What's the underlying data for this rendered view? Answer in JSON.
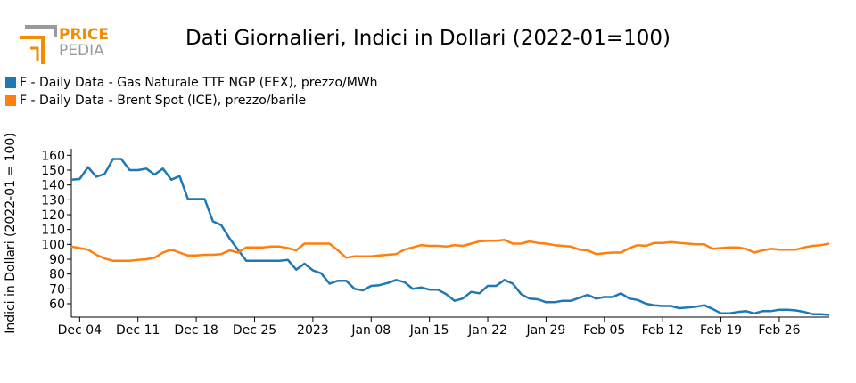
{
  "logo": {
    "word1": "PRICE",
    "word2": "PEDIA",
    "accent": "#f28c00",
    "secondary": "#9a9a9a"
  },
  "chart_data": {
    "type": "line",
    "title": "Dati Giornalieri, Indici in Dollari (2022-01=100)",
    "xlabel": "",
    "ylabel": "Indici in Dollari (2022-01 = 100)",
    "ylim": [
      51,
      162
    ],
    "yticks": [
      60,
      70,
      80,
      90,
      100,
      110,
      120,
      130,
      140,
      150,
      160
    ],
    "xlim": [
      "2022-12-03",
      "2023-03-04"
    ],
    "xticks": [
      {
        "date": "2022-12-04",
        "label": "Dec 04"
      },
      {
        "date": "2022-12-11",
        "label": "Dec 11"
      },
      {
        "date": "2022-12-18",
        "label": "Dec 18"
      },
      {
        "date": "2022-12-25",
        "label": "Dec 25"
      },
      {
        "date": "2023-01-01",
        "label": "2023"
      },
      {
        "date": "2023-01-08",
        "label": "Jan 08"
      },
      {
        "date": "2023-01-15",
        "label": "Jan 15"
      },
      {
        "date": "2023-01-22",
        "label": "Jan 22"
      },
      {
        "date": "2023-01-29",
        "label": "Jan 29"
      },
      {
        "date": "2023-02-05",
        "label": "Feb 05"
      },
      {
        "date": "2023-02-12",
        "label": "Feb 12"
      },
      {
        "date": "2023-02-19",
        "label": "Feb 19"
      },
      {
        "date": "2023-02-26",
        "label": "Feb 26"
      }
    ],
    "legend_position": "top-left",
    "series": [
      {
        "name": "F - Daily Data - Gas Naturale TTF NGP (EEX), prezzo/MWh",
        "color": "#1f77b4",
        "points": [
          [
            "2022-12-03",
            143.5
          ],
          [
            "2022-12-04",
            144
          ],
          [
            "2022-12-05",
            152
          ],
          [
            "2022-12-06",
            145.5
          ],
          [
            "2022-12-07",
            147.5
          ],
          [
            "2022-12-08",
            157.5
          ],
          [
            "2022-12-09",
            157.5
          ],
          [
            "2022-12-10",
            150
          ],
          [
            "2022-12-11",
            150
          ],
          [
            "2022-12-12",
            151
          ],
          [
            "2022-12-13",
            147
          ],
          [
            "2022-12-14",
            151
          ],
          [
            "2022-12-15",
            143.5
          ],
          [
            "2022-12-16",
            146
          ],
          [
            "2022-12-17",
            130.5
          ],
          [
            "2022-12-18",
            130.5
          ],
          [
            "2022-12-19",
            130.5
          ],
          [
            "2022-12-20",
            115.5
          ],
          [
            "2022-12-21",
            113
          ],
          [
            "2022-12-22",
            104
          ],
          [
            "2022-12-23",
            96.5
          ],
          [
            "2022-12-24",
            89
          ],
          [
            "2022-12-25",
            89
          ],
          [
            "2022-12-26",
            89
          ],
          [
            "2022-12-27",
            89
          ],
          [
            "2022-12-28",
            89
          ],
          [
            "2022-12-29",
            89.5
          ],
          [
            "2022-12-30",
            83
          ],
          [
            "2022-12-31",
            87
          ],
          [
            "2023-01-01",
            82.5
          ],
          [
            "2023-01-02",
            80.5
          ],
          [
            "2023-01-03",
            73.5
          ],
          [
            "2023-01-04",
            75.5
          ],
          [
            "2023-01-05",
            75.5
          ],
          [
            "2023-01-06",
            70
          ],
          [
            "2023-01-07",
            69
          ],
          [
            "2023-01-08",
            72
          ],
          [
            "2023-01-09",
            72.5
          ],
          [
            "2023-01-10",
            74
          ],
          [
            "2023-01-11",
            76
          ],
          [
            "2023-01-12",
            74.5
          ],
          [
            "2023-01-13",
            70
          ],
          [
            "2023-01-14",
            71
          ],
          [
            "2023-01-15",
            69.5
          ],
          [
            "2023-01-16",
            69.5
          ],
          [
            "2023-01-17",
            66.5
          ],
          [
            "2023-01-18",
            62
          ],
          [
            "2023-01-19",
            63.5
          ],
          [
            "2023-01-20",
            68
          ],
          [
            "2023-01-21",
            67
          ],
          [
            "2023-01-22",
            72
          ],
          [
            "2023-01-23",
            72
          ],
          [
            "2023-01-24",
            76
          ],
          [
            "2023-01-25",
            73.5
          ],
          [
            "2023-01-26",
            66.5
          ],
          [
            "2023-01-27",
            63.5
          ],
          [
            "2023-01-28",
            63
          ],
          [
            "2023-01-29",
            61
          ],
          [
            "2023-01-30",
            61
          ],
          [
            "2023-01-31",
            62
          ],
          [
            "2023-02-01",
            62
          ],
          [
            "2023-02-02",
            64
          ],
          [
            "2023-02-03",
            66
          ],
          [
            "2023-02-04",
            63.5
          ],
          [
            "2023-02-05",
            64.5
          ],
          [
            "2023-02-06",
            64.5
          ],
          [
            "2023-02-07",
            67
          ],
          [
            "2023-02-08",
            63.5
          ],
          [
            "2023-02-09",
            62.5
          ],
          [
            "2023-02-10",
            60
          ],
          [
            "2023-02-11",
            59
          ],
          [
            "2023-02-12",
            58.5
          ],
          [
            "2023-02-13",
            58.5
          ],
          [
            "2023-02-14",
            57
          ],
          [
            "2023-02-15",
            57.5
          ],
          [
            "2023-02-16",
            58
          ],
          [
            "2023-02-17",
            59
          ],
          [
            "2023-02-18",
            56.5
          ],
          [
            "2023-02-19",
            53.5
          ],
          [
            "2023-02-20",
            53.5
          ],
          [
            "2023-02-21",
            54.5
          ],
          [
            "2023-02-22",
            55
          ],
          [
            "2023-02-23",
            53.5
          ],
          [
            "2023-02-24",
            55
          ],
          [
            "2023-02-25",
            55
          ],
          [
            "2023-02-26",
            56
          ],
          [
            "2023-02-27",
            56
          ],
          [
            "2023-02-28",
            55.5
          ],
          [
            "2023-03-01",
            54.5
          ],
          [
            "2023-03-02",
            53
          ],
          [
            "2023-03-03",
            53
          ],
          [
            "2023-03-04",
            52.5
          ]
        ]
      },
      {
        "name": "F - Daily Data - Brent Spot (ICE), prezzo/barile",
        "color": "#ff7f0e",
        "points": [
          [
            "2022-12-03",
            98.5
          ],
          [
            "2022-12-04",
            97.5
          ],
          [
            "2022-12-05",
            96.5
          ],
          [
            "2022-12-06",
            93
          ],
          [
            "2022-12-07",
            90.5
          ],
          [
            "2022-12-08",
            89
          ],
          [
            "2022-12-09",
            89
          ],
          [
            "2022-12-10",
            89
          ],
          [
            "2022-12-11",
            89.5
          ],
          [
            "2022-12-12",
            90
          ],
          [
            "2022-12-13",
            91
          ],
          [
            "2022-12-14",
            94.5
          ],
          [
            "2022-12-15",
            96.5
          ],
          [
            "2022-12-16",
            94.5
          ],
          [
            "2022-12-17",
            92.5
          ],
          [
            "2022-12-18",
            92.5
          ],
          [
            "2022-12-19",
            93
          ],
          [
            "2022-12-20",
            93
          ],
          [
            "2022-12-21",
            93.5
          ],
          [
            "2022-12-22",
            96
          ],
          [
            "2022-12-23",
            94.5
          ],
          [
            "2022-12-24",
            98
          ],
          [
            "2022-12-25",
            98
          ],
          [
            "2022-12-26",
            98
          ],
          [
            "2022-12-27",
            98.5
          ],
          [
            "2022-12-28",
            98.5
          ],
          [
            "2022-12-29",
            97.5
          ],
          [
            "2022-12-30",
            96
          ],
          [
            "2022-12-31",
            100.5
          ],
          [
            "2023-01-01",
            100.5
          ],
          [
            "2023-01-02",
            100.5
          ],
          [
            "2023-01-03",
            100.5
          ],
          [
            "2023-01-04",
            96
          ],
          [
            "2023-01-05",
            91
          ],
          [
            "2023-01-06",
            92
          ],
          [
            "2023-01-07",
            92
          ],
          [
            "2023-01-08",
            92
          ],
          [
            "2023-01-09",
            92.5
          ],
          [
            "2023-01-10",
            93
          ],
          [
            "2023-01-11",
            93.5
          ],
          [
            "2023-01-12",
            96.5
          ],
          [
            "2023-01-13",
            98
          ],
          [
            "2023-01-14",
            99.5
          ],
          [
            "2023-01-15",
            99
          ],
          [
            "2023-01-16",
            99
          ],
          [
            "2023-01-17",
            98.5
          ],
          [
            "2023-01-18",
            99.5
          ],
          [
            "2023-01-19",
            99
          ],
          [
            "2023-01-20",
            100.5
          ],
          [
            "2023-01-21",
            102
          ],
          [
            "2023-01-22",
            102.5
          ],
          [
            "2023-01-23",
            102.5
          ],
          [
            "2023-01-24",
            103
          ],
          [
            "2023-01-25",
            100.5
          ],
          [
            "2023-01-26",
            100.5
          ],
          [
            "2023-01-27",
            102
          ],
          [
            "2023-01-28",
            101
          ],
          [
            "2023-01-29",
            100.5
          ],
          [
            "2023-01-30",
            99.5
          ],
          [
            "2023-01-31",
            99
          ],
          [
            "2023-02-01",
            98.5
          ],
          [
            "2023-02-02",
            96.5
          ],
          [
            "2023-02-03",
            96
          ],
          [
            "2023-02-04",
            93.5
          ],
          [
            "2023-02-05",
            94
          ],
          [
            "2023-02-06",
            94.5
          ],
          [
            "2023-02-07",
            94.5
          ],
          [
            "2023-02-08",
            97.5
          ],
          [
            "2023-02-09",
            99.5
          ],
          [
            "2023-02-10",
            99
          ],
          [
            "2023-02-11",
            101
          ],
          [
            "2023-02-12",
            101
          ],
          [
            "2023-02-13",
            101.5
          ],
          [
            "2023-02-14",
            101
          ],
          [
            "2023-02-15",
            100.5
          ],
          [
            "2023-02-16",
            100
          ],
          [
            "2023-02-17",
            100
          ],
          [
            "2023-02-18",
            97
          ],
          [
            "2023-02-19",
            97.5
          ],
          [
            "2023-02-20",
            98
          ],
          [
            "2023-02-21",
            98
          ],
          [
            "2023-02-22",
            97
          ],
          [
            "2023-02-23",
            94.5
          ],
          [
            "2023-02-24",
            96
          ],
          [
            "2023-02-25",
            97
          ],
          [
            "2023-02-26",
            96.5
          ],
          [
            "2023-02-27",
            96.5
          ],
          [
            "2023-02-28",
            96.5
          ],
          [
            "2023-03-01",
            98
          ],
          [
            "2023-03-02",
            99
          ],
          [
            "2023-03-03",
            99.5
          ],
          [
            "2023-03-04",
            100.5
          ]
        ]
      }
    ]
  }
}
